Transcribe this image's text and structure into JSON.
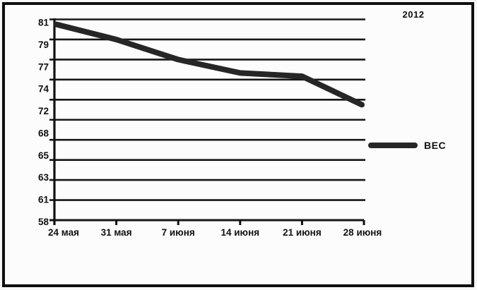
{
  "year_label": "2012",
  "legend": {
    "series_label": "ВЕС"
  },
  "colors": {
    "line": "#262626",
    "grid": "#161616",
    "axis": "#111111",
    "text": "#111111",
    "frame_border": "#0f0f0f",
    "background": "#fcfcfc"
  },
  "chart_data": {
    "type": "line",
    "title": "2012",
    "xlabel": "",
    "ylabel": "",
    "categories": [
      "24 мая",
      "31 мая",
      "7 июня",
      "14 июня",
      "21 июня",
      "28 июня"
    ],
    "series": [
      {
        "name": "ВЕС",
        "values": [
          80.5,
          79,
          77,
          75,
          74.5,
          71.5
        ],
        "color": "#262626"
      }
    ],
    "y_ticks": [
      81,
      79,
      77,
      74,
      72,
      68,
      65,
      63,
      61,
      58
    ],
    "y_gridline_values": [
      81,
      79,
      77,
      74,
      72,
      70,
      68,
      65,
      63,
      61,
      58
    ],
    "ylim": [
      58,
      81
    ],
    "grid": "horizontal-only",
    "legend_position": "right",
    "axis_style": "evenly spaced category-like y ticks; one unlabeled gridline between 72 and 68"
  }
}
